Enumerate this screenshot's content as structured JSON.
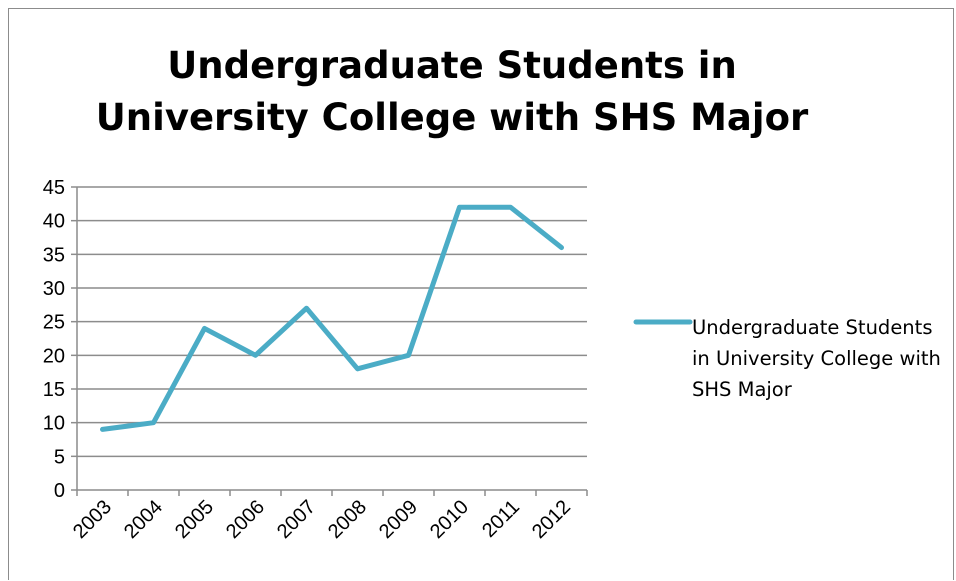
{
  "chart_data": {
    "type": "line",
    "title": "Undergraduate Students in University College with SHS Major",
    "title_lines": [
      "Undergraduate Students in",
      "University College with SHS Major"
    ],
    "categories": [
      "2003",
      "2004",
      "2005",
      "2006",
      "2007",
      "2008",
      "2009",
      "2010",
      "2011",
      "2012"
    ],
    "series": [
      {
        "name": "Undergraduate Students in University College with SHS Major",
        "values": [
          9,
          10,
          24,
          20,
          27,
          18,
          20,
          42,
          42,
          36
        ],
        "color": "#4bacc6"
      }
    ],
    "ylim": [
      0,
      45
    ],
    "yticks": [
      "0",
      "5",
      "10",
      "15",
      "20",
      "25",
      "30",
      "35",
      "40",
      "45"
    ],
    "grid": true,
    "legend": "right"
  }
}
